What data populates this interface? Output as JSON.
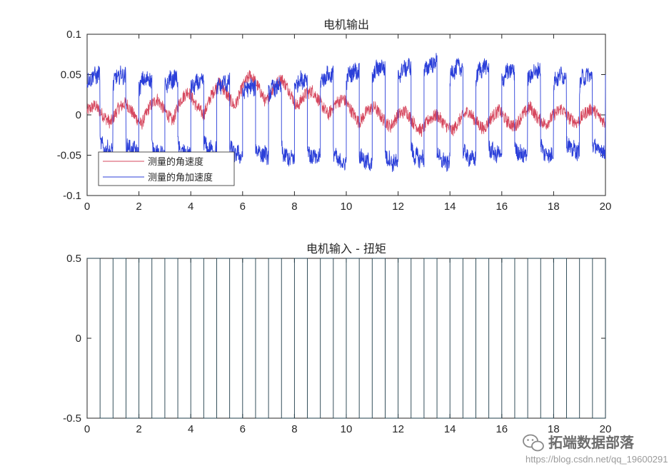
{
  "chart_data": [
    {
      "type": "line",
      "title": "电机输出",
      "xlim": [
        0,
        20
      ],
      "ylim": [
        -0.1,
        0.1
      ],
      "xticks": [
        "0",
        "2",
        "4",
        "6",
        "8",
        "10",
        "12",
        "14",
        "16",
        "18",
        "20"
      ],
      "yticks": [
        "-0.1",
        "-0.05",
        "0",
        "0.05",
        "0.1"
      ],
      "legend_position": "bottom-left",
      "grid": false,
      "series": [
        {
          "name": "测量的角速度",
          "color": "#d6475e",
          "x": [
            0,
            0.3,
            0.6,
            0.9,
            1.2,
            1.5,
            1.8,
            2.1,
            2.4,
            2.7,
            3.0,
            3.3,
            3.6,
            3.9,
            4.2,
            4.5,
            4.8,
            5.1,
            5.4,
            5.7,
            6.0,
            6.3,
            6.6,
            6.9,
            7.2,
            7.5,
            7.8,
            8.1,
            8.4,
            8.7,
            9.0,
            9.3,
            9.6,
            9.9,
            10.2,
            10.5,
            10.8,
            11.1,
            11.4,
            11.7,
            12.0,
            12.3,
            12.6,
            12.9,
            13.2,
            13.5,
            13.8,
            14.1,
            14.4,
            14.7,
            15.0,
            15.3,
            15.6,
            15.9,
            16.2,
            16.5,
            16.8,
            17.1,
            17.4,
            17.7,
            18.0,
            18.3,
            18.6,
            18.9,
            19.2,
            19.5,
            19.8,
            20.0
          ],
          "values": [
            0.005,
            0.012,
            0.0,
            -0.01,
            0.008,
            0.015,
            0.0,
            -0.012,
            0.01,
            0.02,
            0.005,
            -0.008,
            0.018,
            0.03,
            0.012,
            0.0,
            0.025,
            0.04,
            0.025,
            0.01,
            0.035,
            0.05,
            0.035,
            0.015,
            0.035,
            0.045,
            0.03,
            0.01,
            0.025,
            0.03,
            0.015,
            0.0,
            0.015,
            0.02,
            0.005,
            -0.01,
            0.005,
            0.01,
            -0.005,
            -0.015,
            0.0,
            0.005,
            -0.01,
            -0.02,
            -0.005,
            0.0,
            -0.012,
            -0.02,
            -0.005,
            0.005,
            -0.008,
            -0.018,
            -0.003,
            0.006,
            -0.008,
            -0.015,
            0.0,
            0.01,
            -0.005,
            -0.012,
            0.0,
            0.008,
            -0.004,
            -0.01,
            0.002,
            0.008,
            -0.004,
            -0.01
          ]
        },
        {
          "name": "测量的角加速度",
          "color": "#2b3fd9",
          "x": [
            0,
            0.5,
            1.0,
            1.5,
            2.0,
            2.5,
            3.0,
            3.5,
            4.0,
            4.5,
            5.0,
            5.5,
            6.0,
            6.5,
            7.0,
            7.5,
            8.0,
            8.5,
            9.0,
            9.5,
            10.0,
            10.5,
            11.0,
            11.5,
            12.0,
            12.5,
            13.0,
            13.5,
            14.0,
            14.5,
            15.0,
            15.5,
            16.0,
            16.5,
            17.0,
            17.5,
            18.0,
            18.5,
            19.0,
            19.5,
            20.0
          ],
          "values": [
            0.05,
            -0.045,
            0.05,
            -0.045,
            0.045,
            -0.05,
            0.045,
            -0.05,
            0.04,
            -0.045,
            0.04,
            -0.05,
            0.035,
            -0.05,
            0.035,
            -0.055,
            0.045,
            -0.055,
            0.05,
            -0.06,
            0.055,
            -0.06,
            0.06,
            -0.06,
            0.06,
            -0.055,
            0.065,
            -0.06,
            0.06,
            -0.055,
            0.06,
            -0.05,
            0.055,
            -0.05,
            0.055,
            -0.05,
            0.05,
            -0.045,
            0.05,
            -0.045,
            0.05
          ]
        }
      ]
    },
    {
      "type": "line",
      "title": "电机输入 - 扭矩",
      "xlim": [
        0,
        20
      ],
      "ylim": [
        -0.5,
        0.5
      ],
      "xticks": [
        "0",
        "2",
        "4",
        "6",
        "8",
        "10",
        "12",
        "14",
        "16",
        "18",
        "20"
      ],
      "yticks": [
        "-0.5",
        "0",
        "0.5"
      ],
      "grid": false,
      "series": [
        {
          "color": "#1f3d4a",
          "waveform": "square",
          "period": 1.0,
          "high": 0.5,
          "low": -0.5,
          "high_first": true
        }
      ]
    }
  ],
  "watermark": {
    "icon": "wechat-icon",
    "text": "拓端数据部落",
    "url": "https://blog.csdn.net/qq_19600291"
  }
}
